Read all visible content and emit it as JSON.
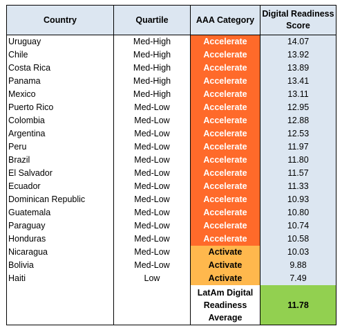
{
  "headers": {
    "country": "Country",
    "quartile": "Quartile",
    "category": "AAA Category",
    "score": "Digital Readiness Score"
  },
  "rows": [
    {
      "country": "Uruguay",
      "quartile": "Med-High",
      "category": "Accelerate",
      "score": "14.07"
    },
    {
      "country": "Chile",
      "quartile": "Med-High",
      "category": "Accelerate",
      "score": "13.92"
    },
    {
      "country": "Costa Rica",
      "quartile": "Med-High",
      "category": "Accelerate",
      "score": "13.89"
    },
    {
      "country": "Panama",
      "quartile": "Med-High",
      "category": "Accelerate",
      "score": "13.41"
    },
    {
      "country": "Mexico",
      "quartile": "Med-High",
      "category": "Accelerate",
      "score": "13.11"
    },
    {
      "country": "Puerto Rico",
      "quartile": "Med-Low",
      "category": "Accelerate",
      "score": "12.95"
    },
    {
      "country": "Colombia",
      "quartile": "Med-Low",
      "category": "Accelerate",
      "score": "12.88"
    },
    {
      "country": "Argentina",
      "quartile": "Med-Low",
      "category": "Accelerate",
      "score": "12.53"
    },
    {
      "country": "Peru",
      "quartile": "Med-Low",
      "category": "Accelerate",
      "score": "11.97"
    },
    {
      "country": "Brazil",
      "quartile": "Med-Low",
      "category": "Accelerate",
      "score": "11.80"
    },
    {
      "country": "El Salvador",
      "quartile": "Med-Low",
      "category": "Accelerate",
      "score": "11.57"
    },
    {
      "country": "Ecuador",
      "quartile": "Med-Low",
      "category": "Accelerate",
      "score": "11.33"
    },
    {
      "country": "Dominican Republic",
      "quartile": "Med-Low",
      "category": "Accelerate",
      "score": "10.93"
    },
    {
      "country": "Guatemala",
      "quartile": "Med-Low",
      "category": "Accelerate",
      "score": "10.80"
    },
    {
      "country": "Paraguay",
      "quartile": "Med-Low",
      "category": "Accelerate",
      "score": "10.74"
    },
    {
      "country": "Honduras",
      "quartile": "Med-Low",
      "category": "Accelerate",
      "score": "10.58"
    },
    {
      "country": "Nicaragua",
      "quartile": "Med-Low",
      "category": "Activate",
      "score": "10.03"
    },
    {
      "country": "Bolivia",
      "quartile": "Med-Low",
      "category": "Activate",
      "score": "9.88"
    },
    {
      "country": "Haiti",
      "quartile": "Low",
      "category": "Activate",
      "score": "7.49"
    }
  ],
  "average": {
    "label": "LatAm Digital Readiness Average",
    "value": "11.78"
  },
  "colors": {
    "accelerate": "#ff6a2a",
    "activate": "#ffb84d",
    "header": "#dce6f1",
    "average": "#92d050"
  }
}
